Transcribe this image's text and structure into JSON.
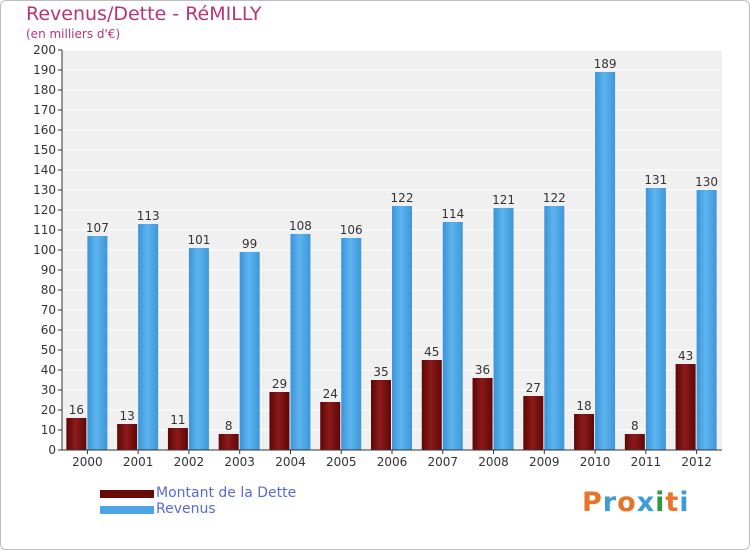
{
  "header": {
    "title": "Revenus/Dette - RéMILLY",
    "subtitle": "(en milliers d'€)"
  },
  "colors": {
    "dette": "#7a0b0b",
    "revenus": "#4aa6e6",
    "title": "#b6357a",
    "legend_text": "#5a6ad8"
  },
  "legend": {
    "items": [
      {
        "label": "Montant de la Dette",
        "color": "#7a0b0b"
      },
      {
        "label": "Revenus",
        "color": "#4aa6e6"
      }
    ]
  },
  "logo": {
    "text": "Proxiti",
    "letter_colors": [
      "#e8742a",
      "#3f9bd6",
      "#e8742a",
      "#3f9bd6",
      "#2f9a3a",
      "#e8742a",
      "#3f9bd6"
    ]
  },
  "chart_data": {
    "type": "bar",
    "title": "Revenus/Dette - RéMILLY",
    "subtitle": "(en milliers d'€)",
    "categories": [
      "2000",
      "2001",
      "2002",
      "2003",
      "2004",
      "2005",
      "2006",
      "2007",
      "2008",
      "2009",
      "2010",
      "2011",
      "2012"
    ],
    "series": [
      {
        "name": "Montant de la Dette",
        "values": [
          16,
          13,
          11,
          8,
          29,
          24,
          35,
          45,
          36,
          27,
          18,
          8,
          43
        ]
      },
      {
        "name": "Revenus",
        "values": [
          107,
          113,
          101,
          99,
          108,
          106,
          122,
          114,
          121,
          122,
          189,
          131,
          130
        ]
      }
    ],
    "ylim": [
      0,
      200
    ],
    "yticks": [
      0,
      10,
      20,
      30,
      40,
      50,
      60,
      70,
      80,
      90,
      100,
      110,
      120,
      130,
      140,
      150,
      160,
      170,
      180,
      190,
      200
    ],
    "grid": true,
    "legend_position": "bottom-left"
  }
}
